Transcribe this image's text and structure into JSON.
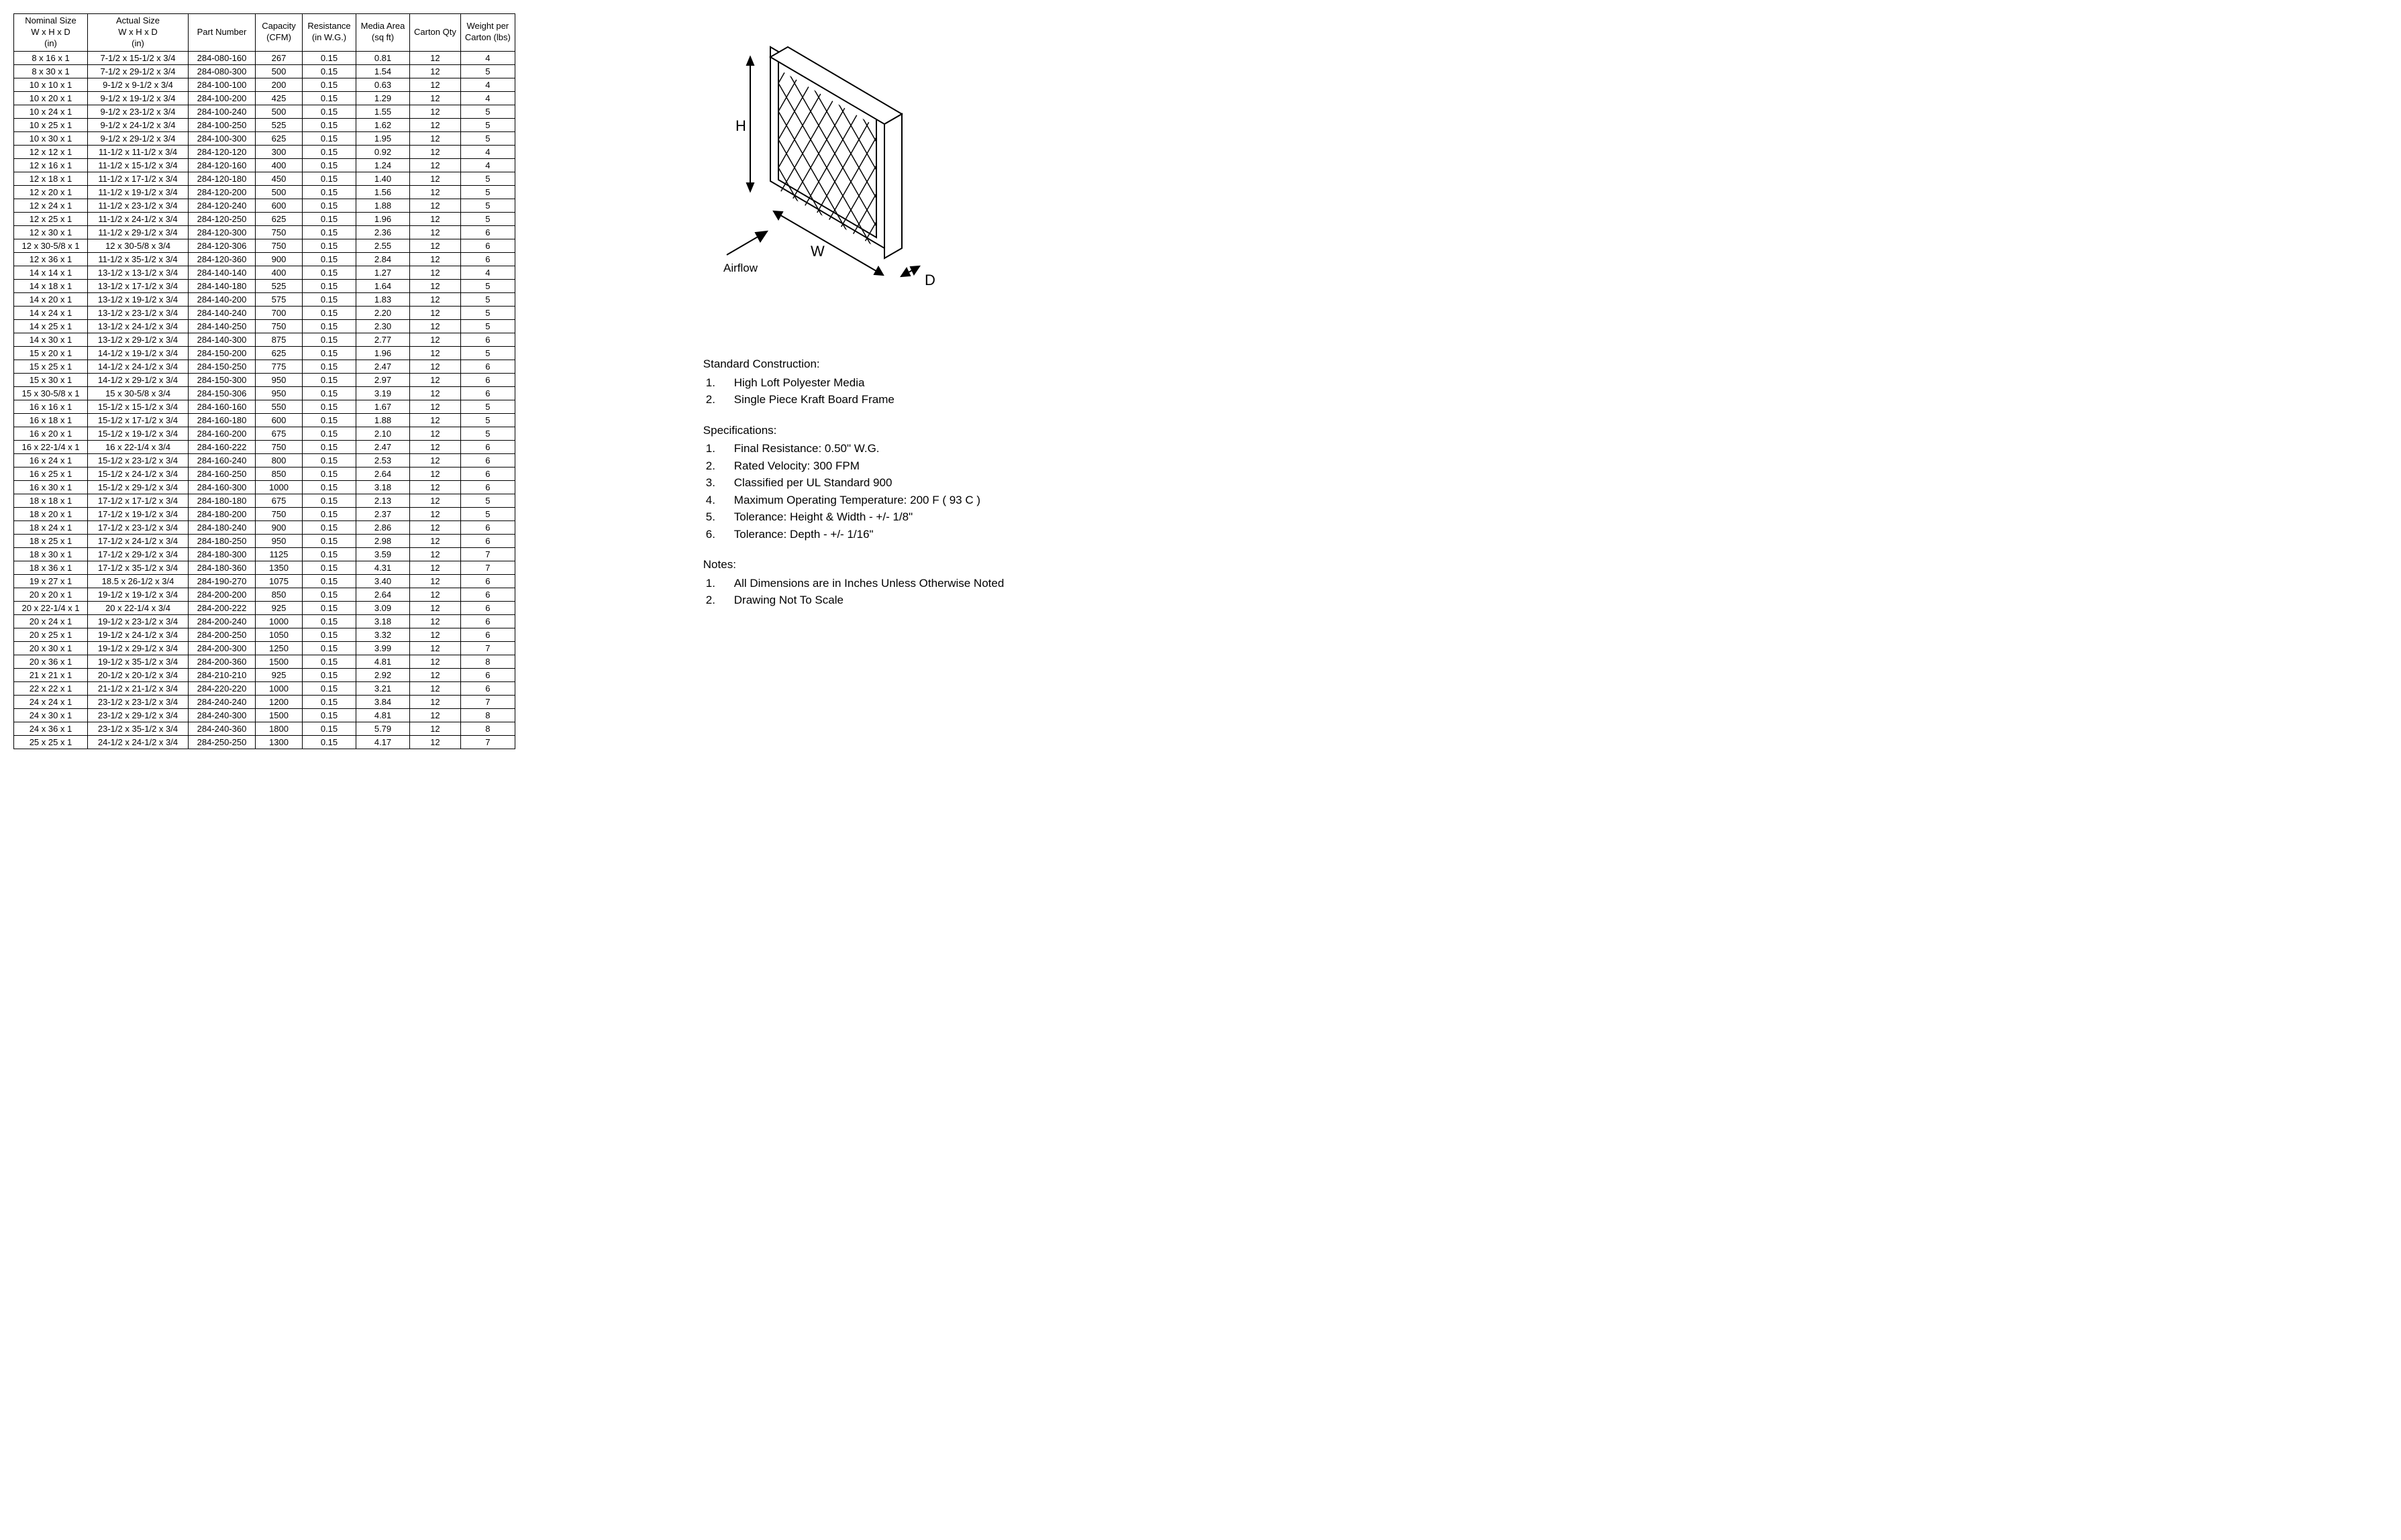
{
  "table": {
    "headers": [
      {
        "lines": [
          "Nominal Size",
          "W x H x D",
          "(in)"
        ],
        "width": 110
      },
      {
        "lines": [
          "Actual Size",
          "W x H x D",
          "(in)"
        ],
        "width": 150
      },
      {
        "lines": [
          "Part Number"
        ],
        "width": 100
      },
      {
        "lines": [
          "Capacity",
          "(CFM)"
        ],
        "width": 70
      },
      {
        "lines": [
          "Resistance",
          "(in W.G.)"
        ],
        "width": 80
      },
      {
        "lines": [
          "Media Area",
          "(sq ft)"
        ],
        "width": 80
      },
      {
        "lines": [
          "Carton Qty"
        ],
        "width": 75
      },
      {
        "lines": [
          "Weight per",
          "Carton (lbs)"
        ],
        "width": 80
      }
    ],
    "rows": [
      [
        "8 x 16 x 1",
        "7-1/2 x 15-1/2 x 3/4",
        "284-080-160",
        "267",
        "0.15",
        "0.81",
        "12",
        "4"
      ],
      [
        "8 x 30 x 1",
        "7-1/2 x 29-1/2 x 3/4",
        "284-080-300",
        "500",
        "0.15",
        "1.54",
        "12",
        "5"
      ],
      [
        "10 x 10 x 1",
        "9-1/2 x 9-1/2 x 3/4",
        "284-100-100",
        "200",
        "0.15",
        "0.63",
        "12",
        "4"
      ],
      [
        "10 x 20 x 1",
        "9-1/2 x 19-1/2 x 3/4",
        "284-100-200",
        "425",
        "0.15",
        "1.29",
        "12",
        "4"
      ],
      [
        "10 x 24 x 1",
        "9-1/2 x 23-1/2 x 3/4",
        "284-100-240",
        "500",
        "0.15",
        "1.55",
        "12",
        "5"
      ],
      [
        "10 x 25 x 1",
        "9-1/2 x 24-1/2 x 3/4",
        "284-100-250",
        "525",
        "0.15",
        "1.62",
        "12",
        "5"
      ],
      [
        "10 x 30 x 1",
        "9-1/2 x 29-1/2 x 3/4",
        "284-100-300",
        "625",
        "0.15",
        "1.95",
        "12",
        "5"
      ],
      [
        "12 x 12 x 1",
        "11-1/2 x 11-1/2 x 3/4",
        "284-120-120",
        "300",
        "0.15",
        "0.92",
        "12",
        "4"
      ],
      [
        "12 x 16 x 1",
        "11-1/2 x 15-1/2 x 3/4",
        "284-120-160",
        "400",
        "0.15",
        "1.24",
        "12",
        "4"
      ],
      [
        "12 x 18 x 1",
        "11-1/2 x 17-1/2 x 3/4",
        "284-120-180",
        "450",
        "0.15",
        "1.40",
        "12",
        "5"
      ],
      [
        "12 x 20 x 1",
        "11-1/2 x 19-1/2 x 3/4",
        "284-120-200",
        "500",
        "0.15",
        "1.56",
        "12",
        "5"
      ],
      [
        "12 x 24 x 1",
        "11-1/2 x 23-1/2 x 3/4",
        "284-120-240",
        "600",
        "0.15",
        "1.88",
        "12",
        "5"
      ],
      [
        "12 x 25 x 1",
        "11-1/2 x 24-1/2 x 3/4",
        "284-120-250",
        "625",
        "0.15",
        "1.96",
        "12",
        "5"
      ],
      [
        "12 x 30 x 1",
        "11-1/2 x 29-1/2 x 3/4",
        "284-120-300",
        "750",
        "0.15",
        "2.36",
        "12",
        "6"
      ],
      [
        "12 x 30-5/8 x 1",
        "12 x 30-5/8 x 3/4",
        "284-120-306",
        "750",
        "0.15",
        "2.55",
        "12",
        "6"
      ],
      [
        "12 x 36 x 1",
        "11-1/2 x 35-1/2 x 3/4",
        "284-120-360",
        "900",
        "0.15",
        "2.84",
        "12",
        "6"
      ],
      [
        "14 x 14 x 1",
        "13-1/2 x 13-1/2 x 3/4",
        "284-140-140",
        "400",
        "0.15",
        "1.27",
        "12",
        "4"
      ],
      [
        "14 x 18 x 1",
        "13-1/2 x 17-1/2 x 3/4",
        "284-140-180",
        "525",
        "0.15",
        "1.64",
        "12",
        "5"
      ],
      [
        "14 x 20 x 1",
        "13-1/2 x 19-1/2 x 3/4",
        "284-140-200",
        "575",
        "0.15",
        "1.83",
        "12",
        "5"
      ],
      [
        "14 x 24 x 1",
        "13-1/2 x 23-1/2 x 3/4",
        "284-140-240",
        "700",
        "0.15",
        "2.20",
        "12",
        "5"
      ],
      [
        "14 x 25 x 1",
        "13-1/2 x 24-1/2 x 3/4",
        "284-140-250",
        "750",
        "0.15",
        "2.30",
        "12",
        "5"
      ],
      [
        "14 x 30 x 1",
        "13-1/2 x 29-1/2 x 3/4",
        "284-140-300",
        "875",
        "0.15",
        "2.77",
        "12",
        "6"
      ],
      [
        "15 x 20 x 1",
        "14-1/2 x 19-1/2 x 3/4",
        "284-150-200",
        "625",
        "0.15",
        "1.96",
        "12",
        "5"
      ],
      [
        "15 x 25 x 1",
        "14-1/2 x 24-1/2 x 3/4",
        "284-150-250",
        "775",
        "0.15",
        "2.47",
        "12",
        "6"
      ],
      [
        "15 x 30 x 1",
        "14-1/2 x 29-1/2 x 3/4",
        "284-150-300",
        "950",
        "0.15",
        "2.97",
        "12",
        "6"
      ],
      [
        "15 x 30-5/8 x 1",
        "15 x 30-5/8 x 3/4",
        "284-150-306",
        "950",
        "0.15",
        "3.19",
        "12",
        "6"
      ],
      [
        "16 x 16 x 1",
        "15-1/2 x 15-1/2 x 3/4",
        "284-160-160",
        "550",
        "0.15",
        "1.67",
        "12",
        "5"
      ],
      [
        "16 x 18 x 1",
        "15-1/2 x 17-1/2 x 3/4",
        "284-160-180",
        "600",
        "0.15",
        "1.88",
        "12",
        "5"
      ],
      [
        "16 x 20 x 1",
        "15-1/2 x 19-1/2 x 3/4",
        "284-160-200",
        "675",
        "0.15",
        "2.10",
        "12",
        "5"
      ],
      [
        "16 x 22-1/4 x 1",
        "16 x 22-1/4 x 3/4",
        "284-160-222",
        "750",
        "0.15",
        "2.47",
        "12",
        "6"
      ],
      [
        "16 x 24 x 1",
        "15-1/2 x 23-1/2 x 3/4",
        "284-160-240",
        "800",
        "0.15",
        "2.53",
        "12",
        "6"
      ],
      [
        "16 x 25 x 1",
        "15-1/2 x 24-1/2 x 3/4",
        "284-160-250",
        "850",
        "0.15",
        "2.64",
        "12",
        "6"
      ],
      [
        "16 x 30 x 1",
        "15-1/2 x 29-1/2 x 3/4",
        "284-160-300",
        "1000",
        "0.15",
        "3.18",
        "12",
        "6"
      ],
      [
        "18 x 18 x 1",
        "17-1/2 x 17-1/2 x 3/4",
        "284-180-180",
        "675",
        "0.15",
        "2.13",
        "12",
        "5"
      ],
      [
        "18 x 20 x 1",
        "17-1/2 x 19-1/2 x 3/4",
        "284-180-200",
        "750",
        "0.15",
        "2.37",
        "12",
        "5"
      ],
      [
        "18 x 24 x 1",
        "17-1/2 x 23-1/2 x 3/4",
        "284-180-240",
        "900",
        "0.15",
        "2.86",
        "12",
        "6"
      ],
      [
        "18 x 25 x 1",
        "17-1/2 x 24-1/2 x 3/4",
        "284-180-250",
        "950",
        "0.15",
        "2.98",
        "12",
        "6"
      ],
      [
        "18 x 30 x 1",
        "17-1/2 x 29-1/2 x 3/4",
        "284-180-300",
        "1125",
        "0.15",
        "3.59",
        "12",
        "7"
      ],
      [
        "18 x 36 x 1",
        "17-1/2 x 35-1/2 x 3/4",
        "284-180-360",
        "1350",
        "0.15",
        "4.31",
        "12",
        "7"
      ],
      [
        "19 x 27 x 1",
        "18.5 x 26-1/2 x 3/4",
        "284-190-270",
        "1075",
        "0.15",
        "3.40",
        "12",
        "6"
      ],
      [
        "20 x 20 x 1",
        "19-1/2 x 19-1/2 x 3/4",
        "284-200-200",
        "850",
        "0.15",
        "2.64",
        "12",
        "6"
      ],
      [
        "20 x 22-1/4 x 1",
        "20 x 22-1/4 x 3/4",
        "284-200-222",
        "925",
        "0.15",
        "3.09",
        "12",
        "6"
      ],
      [
        "20 x 24 x 1",
        "19-1/2 x 23-1/2 x 3/4",
        "284-200-240",
        "1000",
        "0.15",
        "3.18",
        "12",
        "6"
      ],
      [
        "20 x 25 x 1",
        "19-1/2 x 24-1/2 x 3/4",
        "284-200-250",
        "1050",
        "0.15",
        "3.32",
        "12",
        "6"
      ],
      [
        "20 x 30 x 1",
        "19-1/2 x 29-1/2 x 3/4",
        "284-200-300",
        "1250",
        "0.15",
        "3.99",
        "12",
        "7"
      ],
      [
        "20 x 36 x 1",
        "19-1/2 x 35-1/2 x 3/4",
        "284-200-360",
        "1500",
        "0.15",
        "4.81",
        "12",
        "8"
      ],
      [
        "21 x 21 x 1",
        "20-1/2 x 20-1/2 x 3/4",
        "284-210-210",
        "925",
        "0.15",
        "2.92",
        "12",
        "6"
      ],
      [
        "22 x 22 x 1",
        "21-1/2 x 21-1/2 x 3/4",
        "284-220-220",
        "1000",
        "0.15",
        "3.21",
        "12",
        "6"
      ],
      [
        "24 x 24 x 1",
        "23-1/2 x 23-1/2 x 3/4",
        "284-240-240",
        "1200",
        "0.15",
        "3.84",
        "12",
        "7"
      ],
      [
        "24 x 30 x 1",
        "23-1/2 x 29-1/2 x 3/4",
        "284-240-300",
        "1500",
        "0.15",
        "4.81",
        "12",
        "8"
      ],
      [
        "24 x 36 x 1",
        "23-1/2 x 35-1/2 x 3/4",
        "284-240-360",
        "1800",
        "0.15",
        "5.79",
        "12",
        "8"
      ],
      [
        "25 x 25 x 1",
        "24-1/2 x 24-1/2 x 3/4",
        "284-250-250",
        "1300",
        "0.15",
        "4.17",
        "12",
        "7"
      ]
    ]
  },
  "diagram": {
    "labels": {
      "H": "H",
      "W": "W",
      "D": "D",
      "airflow": "Airflow"
    },
    "stroke": "#000000",
    "fontsize": 22
  },
  "info": {
    "construction": {
      "heading": "Standard Construction:",
      "items": [
        "High Loft Polyester Media",
        "Single Piece Kraft Board Frame"
      ]
    },
    "specifications": {
      "heading": "Specifications:",
      "items": [
        "Final Resistance: 0.50\" W.G.",
        "Rated Velocity: 300 FPM",
        "Classified per UL Standard 900",
        "Maximum Operating Temperature: 200 F ( 93 C )",
        "Tolerance:  Height & Width - +/- 1/8\"",
        "Tolerance:  Depth - +/- 1/16\""
      ]
    },
    "notes": {
      "heading": "Notes:",
      "items": [
        "All Dimensions are in Inches Unless Otherwise Noted",
        "Drawing Not To Scale"
      ]
    }
  }
}
